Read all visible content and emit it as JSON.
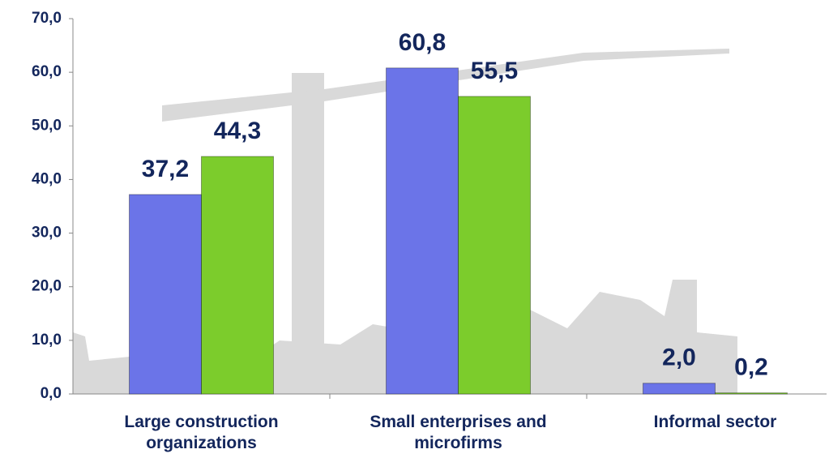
{
  "chart_data": {
    "type": "bar",
    "categories": [
      "Large construction organizations",
      "Small enterprises and microfirms",
      "Informal sector"
    ],
    "series": [
      {
        "color": "#6b74e8",
        "values": [
          37.2,
          60.8,
          2.0
        ],
        "value_labels": [
          "37,2",
          "60,8",
          "2,0"
        ]
      },
      {
        "color": "#7ccc2c",
        "values": [
          44.3,
          55.5,
          0.2
        ],
        "value_labels": [
          "44,3",
          "55,5",
          "0,2"
        ]
      }
    ],
    "ylim": [
      0,
      70
    ],
    "yticks": [
      {
        "value": 0,
        "label": "0,0"
      },
      {
        "value": 10,
        "label": "10,0"
      },
      {
        "value": 20,
        "label": "20,0"
      },
      {
        "value": 30,
        "label": "30,0"
      },
      {
        "value": 40,
        "label": "40,0"
      },
      {
        "value": 50,
        "label": "50,0"
      },
      {
        "value": 60,
        "label": "60,0"
      },
      {
        "value": 70,
        "label": "70,0"
      }
    ],
    "grid": false
  }
}
